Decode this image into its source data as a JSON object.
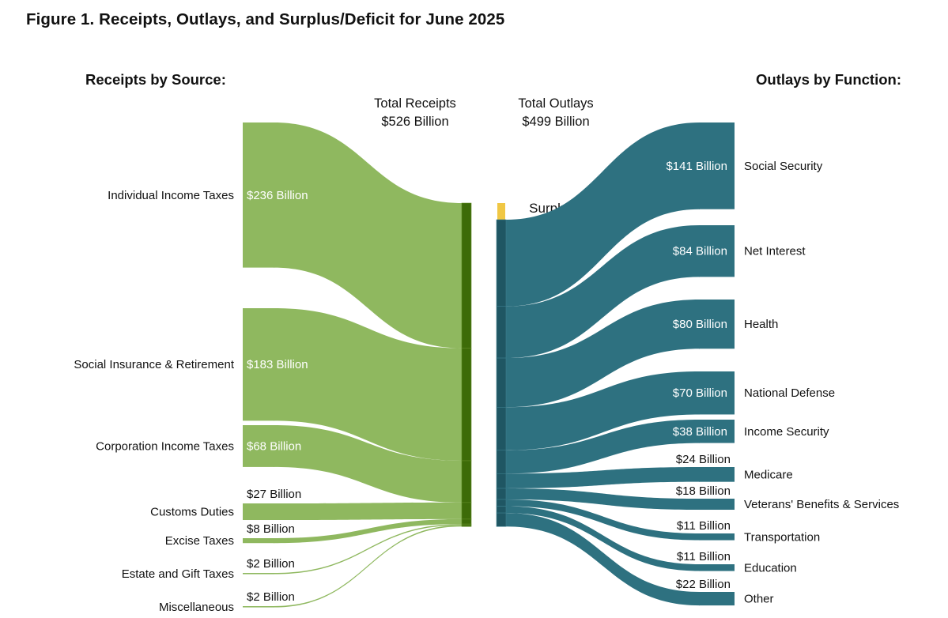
{
  "title": "Figure 1. Receipts, Outlays, and Surplus/Deficit for June 2025",
  "colors": {
    "receipts": "#8fb85f",
    "receipts_bar": "#3d6b08",
    "outlays": "#2e7180",
    "outlays_bar": "#1f5663",
    "surplus": "#f0c744"
  },
  "chart_data": {
    "type": "sankey",
    "unit": "Billion",
    "left_header": "Receipts by Source:",
    "right_header": "Outlays by Function:",
    "total_receipts": {
      "label": "Total Receipts",
      "value_text": "$526 Billion",
      "value": 526
    },
    "total_outlays": {
      "label": "Total Outlays",
      "value_text": "$499 Billion",
      "value": 499
    },
    "surplus": {
      "label": "Surplus",
      "value_text": "$27 Billion",
      "value": 27
    },
    "receipts": [
      {
        "name": "Individual Income Taxes",
        "value": 236,
        "value_text": "$236 Billion"
      },
      {
        "name": "Social Insurance & Retirement",
        "value": 183,
        "value_text": "$183 Billion"
      },
      {
        "name": "Corporation Income Taxes",
        "value": 68,
        "value_text": "$68 Billion"
      },
      {
        "name": "Customs Duties",
        "value": 27,
        "value_text": "$27 Billion"
      },
      {
        "name": "Excise Taxes",
        "value": 8,
        "value_text": "$8 Billion"
      },
      {
        "name": "Estate and Gift Taxes",
        "value": 2,
        "value_text": "$2 Billion"
      },
      {
        "name": "Miscellaneous",
        "value": 2,
        "value_text": "$2 Billion"
      }
    ],
    "outlays": [
      {
        "name": "Social Security",
        "value": 141,
        "value_text": "$141 Billion"
      },
      {
        "name": "Net Interest",
        "value": 84,
        "value_text": "$84 Billion"
      },
      {
        "name": "Health",
        "value": 80,
        "value_text": "$80 Billion"
      },
      {
        "name": "National Defense",
        "value": 70,
        "value_text": "$70 Billion"
      },
      {
        "name": "Income Security",
        "value": 38,
        "value_text": "$38 Billion"
      },
      {
        "name": "Medicare",
        "value": 24,
        "value_text": "$24 Billion"
      },
      {
        "name": "Veterans' Benefits & Services",
        "value": 18,
        "value_text": "$18 Billion"
      },
      {
        "name": "Transportation",
        "value": 11,
        "value_text": "$11 Billion"
      },
      {
        "name": "Education",
        "value": 11,
        "value_text": "$11 Billion"
      },
      {
        "name": "Other",
        "value": 22,
        "value_text": "$22 Billion"
      }
    ]
  }
}
